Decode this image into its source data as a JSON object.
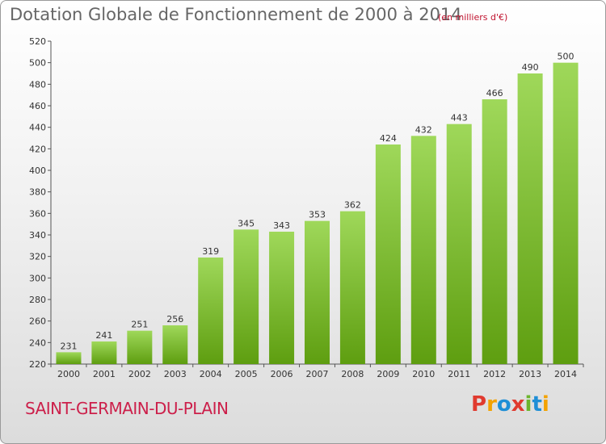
{
  "header": {
    "title": "Dotation Globale de Fonctionnement de 2000 à 2014",
    "units": "(en milliers d'€)"
  },
  "footer": {
    "commune": "SAINT-GERMAIN-DU-PLAIN",
    "logo_text": "Proxiti"
  },
  "colors": {
    "bar_light": "#9fd85a",
    "bar_dark": "#5e9e10",
    "logo_letters": [
      "#e03a2f",
      "#f3a200",
      "#1f8fd6",
      "#e03a2f",
      "#6cb52d",
      "#1f8fd6",
      "#f3a200"
    ]
  },
  "chart_data": {
    "type": "bar",
    "title": "Dotation Globale de Fonctionnement de 2000 à 2014",
    "subtitle": "(en milliers d'€)",
    "categories": [
      "2000",
      "2001",
      "2002",
      "2003",
      "2004",
      "2005",
      "2006",
      "2007",
      "2008",
      "2009",
      "2010",
      "2011",
      "2012",
      "2013",
      "2014"
    ],
    "values": [
      231,
      241,
      251,
      256,
      319,
      345,
      343,
      353,
      362,
      424,
      432,
      443,
      466,
      490,
      500
    ],
    "ylim": [
      220,
      520
    ],
    "yticks": [
      220,
      240,
      260,
      280,
      300,
      320,
      340,
      360,
      380,
      400,
      420,
      440,
      460,
      480,
      500,
      520
    ],
    "grid": false,
    "legend": "none"
  }
}
